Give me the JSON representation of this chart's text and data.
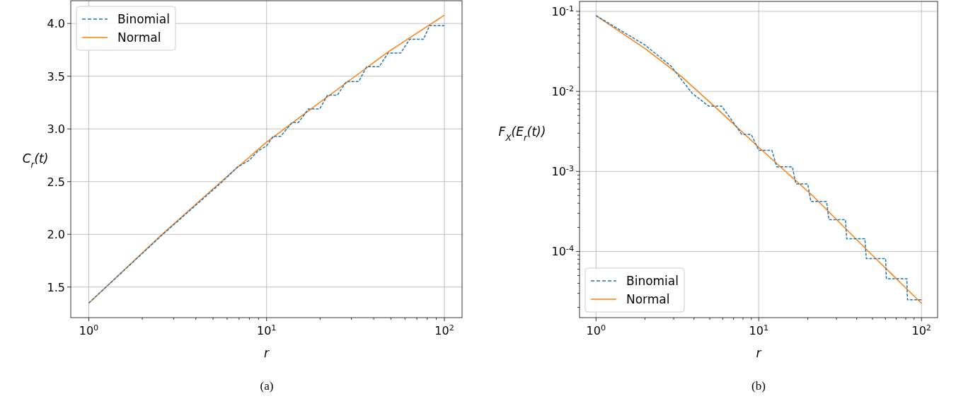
{
  "chart_data": [
    {
      "type": "line",
      "xlabel": "r",
      "ylabel": "C$_{r}$(t)",
      "annotations": [
        "(a)"
      ],
      "log": "x",
      "grid": true,
      "legend": "top left",
      "xlim": [
        0.792,
        125.7
      ],
      "ylim": [
        1.21,
        4.216
      ],
      "xticks": [
        {
          "value": 1,
          "label": "10$^{0}$"
        },
        {
          "value": 2,
          "label": null
        },
        {
          "value": 3,
          "label": null
        },
        {
          "value": 4,
          "label": null
        },
        {
          "value": 5,
          "label": null
        },
        {
          "value": 6,
          "label": null
        },
        {
          "value": 7,
          "label": null
        },
        {
          "value": 8,
          "label": null
        },
        {
          "value": 9,
          "label": null
        },
        {
          "value": 10,
          "label": "10$^{1}$"
        },
        {
          "value": 20,
          "label": null
        },
        {
          "value": 30,
          "label": null
        },
        {
          "value": 40,
          "label": null
        },
        {
          "value": 50,
          "label": null
        },
        {
          "value": 60,
          "label": null
        },
        {
          "value": 70,
          "label": null
        },
        {
          "value": 80,
          "label": null
        },
        {
          "value": 90,
          "label": null
        },
        {
          "value": 100,
          "label": "10$^{2}$"
        }
      ],
      "yticks": [
        1.5,
        {
          "value": 2,
          "label": "2.0"
        },
        2.5,
        {
          "value": 3,
          "label": "3.0"
        },
        3.5,
        {
          "value": 4,
          "label": "4.0"
        }
      ],
      "series": [
        {
          "name": "Binomial",
          "color": "#1f77b4",
          "line_style": "dashed",
          "x": [
            1,
            2.57,
            5.64,
            6.87,
            7.96,
            8.93,
            10,
            10.9,
            12.0,
            13.9,
            15.1,
            17.2,
            19.9,
            22.0,
            25.0,
            28.1,
            33.0,
            36.5,
            43.0,
            48.2,
            56.8,
            63.7,
            76.2,
            82.6,
            100
          ],
          "values": [
            1.348,
            1.99,
            2.5,
            2.64,
            2.7,
            2.79,
            2.84,
            2.93,
            2.93,
            3.06,
            3.06,
            3.19,
            3.19,
            3.32,
            3.32,
            3.45,
            3.45,
            3.59,
            3.59,
            3.72,
            3.72,
            3.85,
            3.85,
            3.98,
            3.98
          ]
        },
        {
          "name": "Normal",
          "color": "#ff7f0e",
          "line_style": "solid",
          "x": [
            1,
            2.57,
            5.64,
            10,
            20.9,
            47.3,
            100
          ],
          "values": [
            1.348,
            1.996,
            2.51,
            2.875,
            3.277,
            3.72,
            4.079
          ]
        }
      ]
    },
    {
      "type": "line",
      "xlabel": "r",
      "ylabel": "F$_{X}$(E$_{r}$(t))",
      "annotations": [
        "(b)"
      ],
      "log": "xy",
      "grid": true,
      "legend": "bottom left",
      "xlim": [
        0.792,
        125.6
      ],
      "ylim": [
        1.49e-05,
        0.133
      ],
      "xticks": [
        {
          "value": 1,
          "label": "10$^{0}$"
        },
        {
          "value": 2,
          "label": null
        },
        {
          "value": 3,
          "label": null
        },
        {
          "value": 4,
          "label": null
        },
        {
          "value": 5,
          "label": null
        },
        {
          "value": 6,
          "label": null
        },
        {
          "value": 7,
          "label": null
        },
        {
          "value": 8,
          "label": null
        },
        {
          "value": 9,
          "label": null
        },
        {
          "value": 10,
          "label": "10$^{1}$"
        },
        {
          "value": 20,
          "label": null
        },
        {
          "value": 30,
          "label": null
        },
        {
          "value": 40,
          "label": null
        },
        {
          "value": 50,
          "label": null
        },
        {
          "value": 60,
          "label": null
        },
        {
          "value": 70,
          "label": null
        },
        {
          "value": 80,
          "label": null
        },
        {
          "value": 90,
          "label": null
        },
        {
          "value": 100,
          "label": "10$^{2}$"
        }
      ],
      "yticks": [
        {
          "value": 2e-05,
          "label": null
        },
        {
          "value": 3e-05,
          "label": null
        },
        {
          "value": 4e-05,
          "label": null
        },
        {
          "value": 5e-05,
          "label": null
        },
        {
          "value": 6e-05,
          "label": null
        },
        {
          "value": 7e-05,
          "label": null
        },
        {
          "value": 8e-05,
          "label": null
        },
        {
          "value": 9e-05,
          "label": null
        },
        {
          "value": 0.0001,
          "label": "10$^{-4}$"
        },
        {
          "value": 0.0002,
          "label": null
        },
        {
          "value": 0.0003,
          "label": null
        },
        {
          "value": 0.0004,
          "label": null
        },
        {
          "value": 0.0005,
          "label": null
        },
        {
          "value": 0.0006,
          "label": null
        },
        {
          "value": 0.0007,
          "label": null
        },
        {
          "value": 0.0008,
          "label": null
        },
        {
          "value": 0.0009,
          "label": null
        },
        {
          "value": 0.001,
          "label": "10$^{-3}$"
        },
        {
          "value": 0.002,
          "label": null
        },
        {
          "value": 0.003,
          "label": null
        },
        {
          "value": 0.004,
          "label": null
        },
        {
          "value": 0.005,
          "label": null
        },
        {
          "value": 0.006,
          "label": null
        },
        {
          "value": 0.007,
          "label": null
        },
        {
          "value": 0.008,
          "label": null
        },
        {
          "value": 0.009,
          "label": null
        },
        {
          "value": 0.01,
          "label": "10$^{-2}$"
        },
        {
          "value": 0.02,
          "label": null
        },
        {
          "value": 0.03,
          "label": null
        },
        {
          "value": 0.04,
          "label": null
        },
        {
          "value": 0.05,
          "label": null
        },
        {
          "value": 0.06,
          "label": null
        },
        {
          "value": 0.07,
          "label": null
        },
        {
          "value": 0.08,
          "label": null
        },
        {
          "value": 0.09,
          "label": null
        },
        {
          "value": 0.1,
          "label": "10$^{-1}$"
        }
      ],
      "series": [
        {
          "name": "Binomial",
          "color": "#1f77b4",
          "line_style": "dashed",
          "x": [
            1,
            2,
            2.89,
            3.9,
            4.93,
            5.92,
            7.87,
            8.99,
            10,
            12.05,
            12.9,
            16.1,
            16.9,
            20.0,
            20.9,
            26.1,
            27.0,
            34.1,
            34.7,
            44.9,
            45.8,
            60.2,
            60.8,
            81.3,
            82.0,
            100
          ],
          "values": [
            0.0885,
            0.0379,
            0.0207,
            0.00946,
            0.00653,
            0.00653,
            0.0029,
            0.0029,
            0.00183,
            0.00183,
            0.00114,
            0.00114,
            0.000698,
            0.000698,
            0.000421,
            0.000421,
            0.000249,
            0.000249,
            0.000144,
            0.000144,
            8.17e-05,
            8.17e-05,
            4.56e-05,
            4.56e-05,
            2.49e-05,
            2.49e-05
          ]
        },
        {
          "name": "Normal",
          "color": "#ff7f0e",
          "line_style": "solid",
          "x": [
            1,
            2,
            3.3,
            5.63,
            10,
            21.4,
            46.1,
            100
          ],
          "values": [
            0.0885,
            0.0343,
            0.01575,
            0.0059,
            0.002,
            0.000498,
            0.000105,
            2.25e-05
          ]
        }
      ]
    }
  ]
}
